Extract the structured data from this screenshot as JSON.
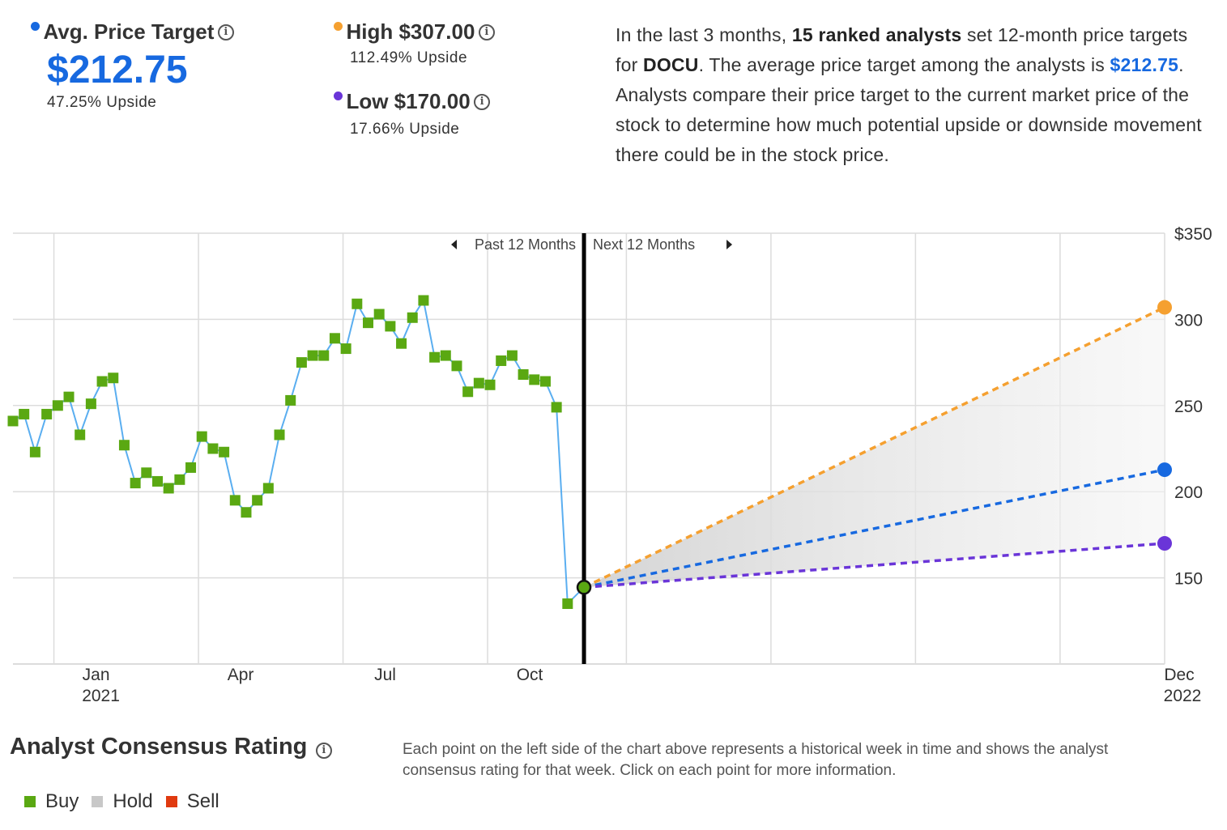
{
  "summary": {
    "avg": {
      "label": "Avg. Price Target",
      "value": "$212.75",
      "upside": "47.25% Upside",
      "color": "#1769e0"
    },
    "high": {
      "label": "High $307.00",
      "upside": "112.49% Upside",
      "color": "#f5a030"
    },
    "low": {
      "label": "Low $170.00",
      "upside": "17.66% Upside",
      "color": "#6a35d8"
    }
  },
  "description": {
    "p1": "In the last 3 months, ",
    "b1": "15 ranked analysts",
    "p2": " set 12-month price targets for ",
    "b2": "DOCU",
    "p3": ". The average price target among the analysts is ",
    "b3": "$212.75",
    "p4": ". Analysts compare their price target to the current market price of the stock to determine how much potential upside or downside movement there could be in the stock price."
  },
  "consensus": {
    "title": "Analyst Consensus Rating",
    "description": "Each point on the left side of the chart above represents a historical week in time and shows the analyst consensus rating for that week. Click on each point for more information.",
    "legend": [
      {
        "label": "Buy",
        "color": "#5aa812"
      },
      {
        "label": "Hold",
        "color": "#c8c8c8"
      },
      {
        "label": "Sell",
        "color": "#e03a10"
      }
    ]
  },
  "chart_data": {
    "type": "line",
    "past_label": "Past 12 Months",
    "next_label": "Next 12 Months",
    "ylim": [
      100,
      350
    ],
    "y_ticks": [
      {
        "value": 350,
        "label": "$350"
      },
      {
        "value": 300,
        "label": "300"
      },
      {
        "value": 250,
        "label": "250"
      },
      {
        "value": 200,
        "label": "200"
      },
      {
        "value": 150,
        "label": "150"
      }
    ],
    "x_ticks": [
      {
        "month": 1,
        "label": "Jan",
        "year": "2021"
      },
      {
        "month": 4,
        "label": "Apr",
        "year": ""
      },
      {
        "month": 7,
        "label": "Jul",
        "year": ""
      },
      {
        "month": 10,
        "label": "Oct",
        "year": ""
      },
      {
        "month": 24,
        "label": "Dec",
        "year": "2022"
      }
    ],
    "xlim_months": [
      0.1,
      24
    ],
    "current_month": 11.95,
    "current_price": 144.5,
    "series": [
      {
        "name": "Buy",
        "color": "#5aa812",
        "line_color": "#5aaef0",
        "months": [
          0.1,
          0.33,
          0.56,
          0.8,
          1.03,
          1.26,
          1.49,
          1.72,
          1.95,
          2.18,
          2.41,
          2.64,
          2.87,
          3.1,
          3.33,
          3.56,
          3.79,
          4.02,
          4.25,
          4.48,
          4.71,
          4.94,
          5.17,
          5.4,
          5.63,
          5.86,
          6.09,
          6.32,
          6.55,
          6.78,
          7.01,
          7.24,
          7.47,
          7.7,
          7.93,
          8.16,
          8.39,
          8.62,
          8.85,
          9.08,
          9.31,
          9.54,
          9.77,
          10.0,
          10.23,
          10.46,
          10.69,
          10.92,
          11.15,
          11.38,
          11.61
        ],
        "values": [
          241,
          245,
          223,
          245,
          250,
          255,
          233,
          251,
          264,
          266,
          227,
          205,
          211,
          206,
          202,
          207,
          214,
          232,
          225,
          223,
          195,
          188,
          195,
          202,
          233,
          253,
          275,
          279,
          279,
          289,
          283,
          309,
          298,
          303,
          296,
          286,
          301,
          311,
          278,
          279,
          273,
          258,
          263,
          262,
          276,
          279,
          268,
          265,
          264,
          249,
          135
        ]
      },
      {
        "name": "High",
        "color": "#f5a030",
        "target": 307.0
      },
      {
        "name": "Average",
        "color": "#1769e0",
        "target": 212.75
      },
      {
        "name": "Low",
        "color": "#6a35d8",
        "target": 170.0
      }
    ]
  }
}
